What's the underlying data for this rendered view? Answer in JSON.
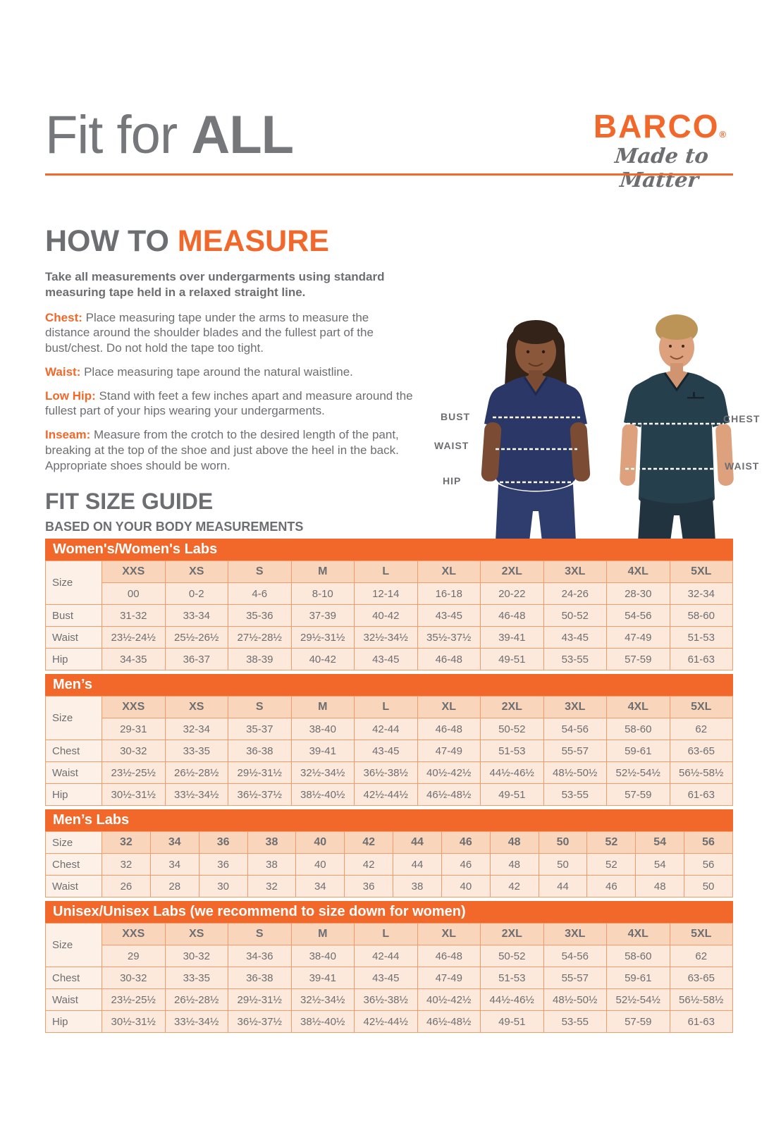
{
  "colors": {
    "accent_orange": "#F2682A",
    "text_gray": "#6D6E71",
    "table_border": "#F29C6C",
    "size_header_cell_bg": "#F9D5BB",
    "data_cell_bg": "#FCE9DB",
    "label_cell_bg": "#FDF0E6",
    "female_scrub_navy": "#2B3766",
    "male_scrub_teal": "#263F4D"
  },
  "header": {
    "title_light": "Fit for ",
    "title_bold": "ALL",
    "brand": "BARCO",
    "brand_reg": "®",
    "tagline": "Made to Matter"
  },
  "how_to_measure": {
    "heading_gray": "HOW TO ",
    "heading_orange": "MEASURE",
    "intro": "Take all measurements over undergarments using standard measuring tape held in a relaxed straight line.",
    "items": [
      {
        "label": "Chest:",
        "text": " Place measuring tape under the arms to measure the distance around the shoulder blades and the fullest part of the bust/chest. Do not hold the tape too tight."
      },
      {
        "label": "Waist:",
        "text": " Place measuring tape around the natural waistline."
      },
      {
        "label": "Low Hip:",
        "text": " Stand with feet a few inches apart and measure around the fullest part of your hips wearing your undergarments."
      },
      {
        "label": "Inseam:",
        "text": " Measure from the crotch to the desired length of the pant, breaking at the top of the shoe and just above the heel in the back. Appropriate shoes should be worn."
      }
    ]
  },
  "figure": {
    "female_labels": {
      "bust": "BUST",
      "waist": "WAIST",
      "hip": "HIP"
    },
    "male_labels": {
      "chest": "CHEST",
      "waist": "WAIST"
    }
  },
  "size_guide": {
    "heading": "FIT SIZE GUIDE",
    "subheading": "BASED ON YOUR BODY MEASUREMENTS",
    "tables": [
      {
        "banner": "Women's/Women's Labs",
        "size_label": "Size",
        "header": [
          "XXS",
          "XS",
          "S",
          "M",
          "L",
          "XL",
          "2XL",
          "3XL",
          "4XL",
          "5XL"
        ],
        "rows": [
          {
            "label": "",
            "cells": [
              "00",
              "0-2",
              "4-6",
              "8-10",
              "12-14",
              "16-18",
              "20-22",
              "24-26",
              "28-30",
              "32-34"
            ]
          },
          {
            "label": "Bust",
            "cells": [
              "31-32",
              "33-34",
              "35-36",
              "37-39",
              "40-42",
              "43-45",
              "46-48",
              "50-52",
              "54-56",
              "58-60"
            ]
          },
          {
            "label": "Waist",
            "cells": [
              "23½-24½",
              "25½-26½",
              "27½-28½",
              "29½-31½",
              "32½-34½",
              "35½-37½",
              "39-41",
              "43-45",
              "47-49",
              "51-53"
            ]
          },
          {
            "label": "Hip",
            "cells": [
              "34-35",
              "36-37",
              "38-39",
              "40-42",
              "43-45",
              "46-48",
              "49-51",
              "53-55",
              "57-59",
              "61-63"
            ]
          }
        ]
      },
      {
        "banner": "Men’s",
        "size_label": "Size",
        "header": [
          "XXS",
          "XS",
          "S",
          "M",
          "L",
          "XL",
          "2XL",
          "3XL",
          "4XL",
          "5XL"
        ],
        "rows": [
          {
            "label": "",
            "cells": [
              "29-31",
              "32-34",
              "35-37",
              "38-40",
              "42-44",
              "46-48",
              "50-52",
              "54-56",
              "58-60",
              "62"
            ]
          },
          {
            "label": "Chest",
            "cells": [
              "30-32",
              "33-35",
              "36-38",
              "39-41",
              "43-45",
              "47-49",
              "51-53",
              "55-57",
              "59-61",
              "63-65"
            ]
          },
          {
            "label": "Waist",
            "cells": [
              "23½-25½",
              "26½-28½",
              "29½-31½",
              "32½-34½",
              "36½-38½",
              "40½-42½",
              "44½-46½",
              "48½-50½",
              "52½-54½",
              "56½-58½"
            ]
          },
          {
            "label": "Hip",
            "cells": [
              "30½-31½",
              "33½-34½",
              "36½-37½",
              "38½-40½",
              "42½-44½",
              "46½-48½",
              "49-51",
              "53-55",
              "57-59",
              "61-63"
            ]
          }
        ]
      },
      {
        "banner": "Men’s Labs",
        "size_label": "Size",
        "header": [
          "32",
          "34",
          "36",
          "38",
          "40",
          "42",
          "44",
          "46",
          "48",
          "50",
          "52",
          "54",
          "56"
        ],
        "rows": [
          {
            "label": "Chest",
            "cells": [
              "32",
              "34",
              "36",
              "38",
              "40",
              "42",
              "44",
              "46",
              "48",
              "50",
              "52",
              "54",
              "56"
            ]
          },
          {
            "label": "Waist",
            "cells": [
              "26",
              "28",
              "30",
              "32",
              "34",
              "36",
              "38",
              "40",
              "42",
              "44",
              "46",
              "48",
              "50"
            ]
          }
        ]
      },
      {
        "banner": "Unisex/Unisex Labs (we recommend to size down for women)",
        "size_label": "Size",
        "header": [
          "XXS",
          "XS",
          "S",
          "M",
          "L",
          "XL",
          "2XL",
          "3XL",
          "4XL",
          "5XL"
        ],
        "rows": [
          {
            "label": "",
            "cells": [
              "29",
              "30-32",
              "34-36",
              "38-40",
              "42-44",
              "46-48",
              "50-52",
              "54-56",
              "58-60",
              "62"
            ]
          },
          {
            "label": "Chest",
            "cells": [
              "30-32",
              "33-35",
              "36-38",
              "39-41",
              "43-45",
              "47-49",
              "51-53",
              "55-57",
              "59-61",
              "63-65"
            ]
          },
          {
            "label": "Waist",
            "cells": [
              "23½-25½",
              "26½-28½",
              "29½-31½",
              "32½-34½",
              "36½-38½",
              "40½-42½",
              "44½-46½",
              "48½-50½",
              "52½-54½",
              "56½-58½"
            ]
          },
          {
            "label": "Hip",
            "cells": [
              "30½-31½",
              "33½-34½",
              "36½-37½",
              "38½-40½",
              "42½-44½",
              "46½-48½",
              "49-51",
              "53-55",
              "57-59",
              "61-63"
            ]
          }
        ]
      }
    ]
  }
}
